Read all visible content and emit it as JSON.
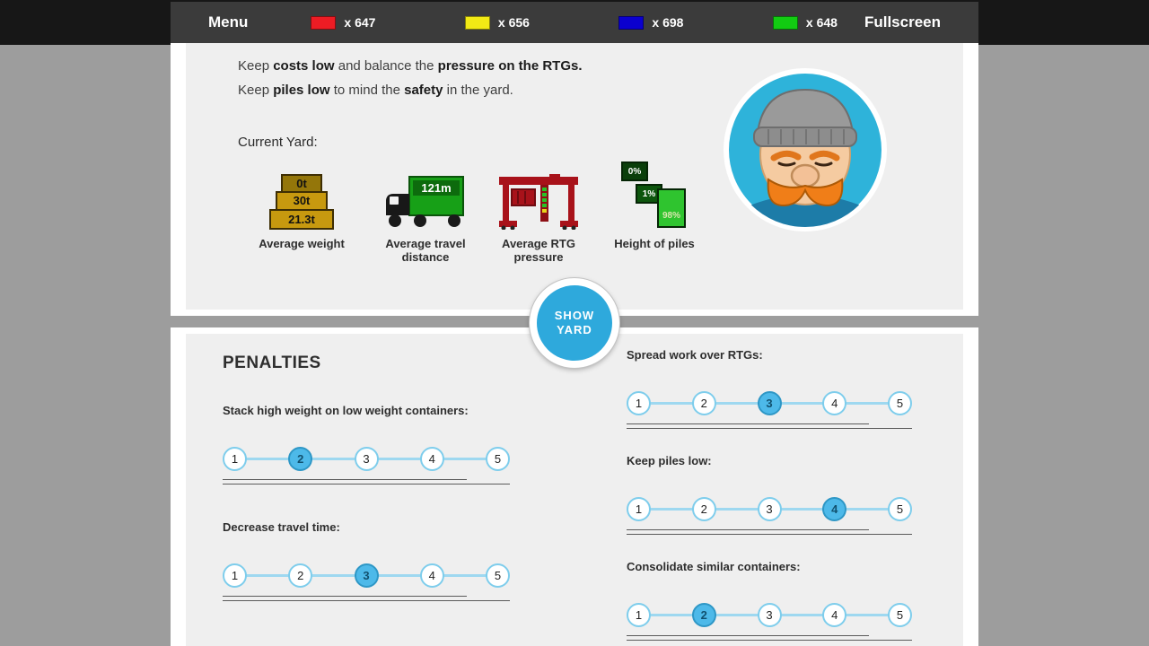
{
  "menu_bar": {
    "menu_label": "Menu",
    "fullscreen_label": "Fullscreen",
    "counters": [
      {
        "name": "red",
        "color": "#ed1c24",
        "count_label": "x 647"
      },
      {
        "name": "yellow",
        "color": "#f2ea15",
        "count_label": "x 656"
      },
      {
        "name": "blue",
        "color": "#0b00cf",
        "count_label": "x 698"
      },
      {
        "name": "green",
        "color": "#12cc12",
        "count_label": "x 648"
      }
    ]
  },
  "instructions": {
    "line1": [
      "Keep ",
      "costs low",
      " and balance the ",
      "pressure on the RTGs."
    ],
    "line2": [
      "Keep ",
      "piles low",
      " to mind the ",
      "safety",
      " in the yard."
    ]
  },
  "current_yard": {
    "title": "Current Yard:",
    "average_weight": {
      "label": "Average weight",
      "values": [
        "0t",
        "30t",
        "21.3t"
      ]
    },
    "average_travel_distance": {
      "label": "Average travel distance",
      "value": "121m"
    },
    "average_rtg_pressure": {
      "label": "Average RTG pressure"
    },
    "height_of_piles": {
      "label": "Height of piles",
      "values": [
        "0%",
        "1%",
        "98%"
      ]
    }
  },
  "show_yard_button": {
    "line1": "SHOW",
    "line2": "YARD"
  },
  "penalties": {
    "title": "PENALTIES",
    "scale": [
      "1",
      "2",
      "3",
      "4",
      "5"
    ],
    "sliders_left": [
      {
        "label": "Stack high weight on low weight containers:",
        "value": "2"
      },
      {
        "label": "Decrease travel time:",
        "value": "3"
      }
    ],
    "sliders_right": [
      {
        "label": "Spread work over RTGs:",
        "value": "3"
      },
      {
        "label": "Keep piles low:",
        "value": "4"
      },
      {
        "label": "Consolidate similar containers:",
        "value": "2"
      }
    ]
  }
}
